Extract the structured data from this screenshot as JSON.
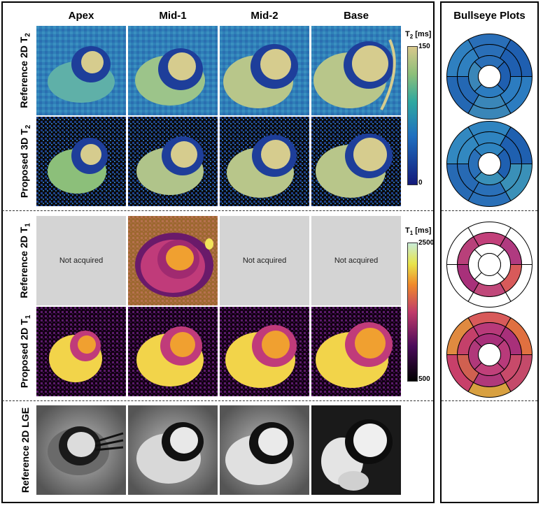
{
  "columns": [
    "Apex",
    "Mid-1",
    "Mid-2",
    "Base"
  ],
  "right_title": "Bullseye Plots",
  "rows": [
    {
      "label": "Reference 2D T",
      "sub": "2"
    },
    {
      "label": "Proposed 3D T",
      "sub": "2"
    },
    {
      "label": "Reference 2D T",
      "sub": "1"
    },
    {
      "label": "Proposed 2D T",
      "sub": "1"
    },
    {
      "label": "Reference 2D LGE",
      "sub": ""
    }
  ],
  "not_acquired": "Not acquired",
  "colorbars": {
    "t2": {
      "title": "T",
      "sub": "2",
      "unit": " [ms]",
      "max": "150",
      "min": "0"
    },
    "t1": {
      "title": "T",
      "sub": "1",
      "unit": " [ms]",
      "max": "2500",
      "min": "500"
    }
  },
  "colors": {
    "t2_low": "#1a2a8a",
    "t2_mid": "#2e8fb0",
    "t2_high": "#d6cc8e",
    "t1_low": "#000000",
    "t1_mid": "#c03b7a",
    "t1_high": "#f2e45a"
  }
}
